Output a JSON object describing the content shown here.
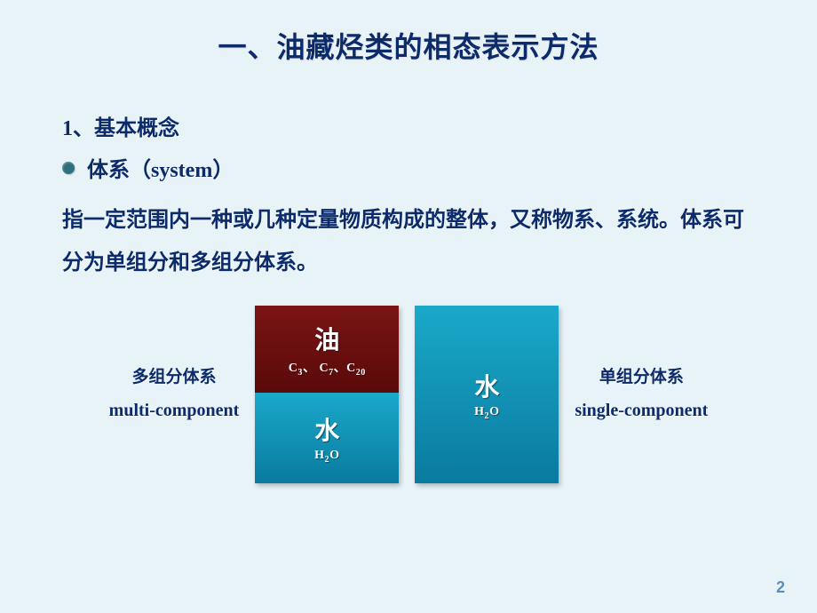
{
  "title": "一、油藏烃类的相态表示方法",
  "section_number": "1、基本概念",
  "bullet_label": "体系（system）",
  "body_text": "指一定范围内一种或几种定量物质构成的整体，又称物系、系统。体系可分为单组分和多组分体系。",
  "left_label": {
    "cn": "多组分体系",
    "en": "multi-component"
  },
  "right_label": {
    "cn": "单组分体系",
    "en": "single-component"
  },
  "boxes": {
    "oil": {
      "title": "油",
      "formula_html": "C<sub>3</sub>、 C<sub>7</sub>、C<sub>20</sub>",
      "bg": "#5a0a0a"
    },
    "water1": {
      "title": "水",
      "formula_html": "H<sub>2</sub>O",
      "bg": "#0a7aa0"
    },
    "water2": {
      "title": "水",
      "formula_html": "H<sub>2</sub>O",
      "bg": "#0a7aa0"
    }
  },
  "colors": {
    "page_bg": "#e8f3f8",
    "text": "#0c2b6a",
    "bullet": "#2f6f7e",
    "pagenum": "#5b8fb8"
  },
  "page_number": "2"
}
